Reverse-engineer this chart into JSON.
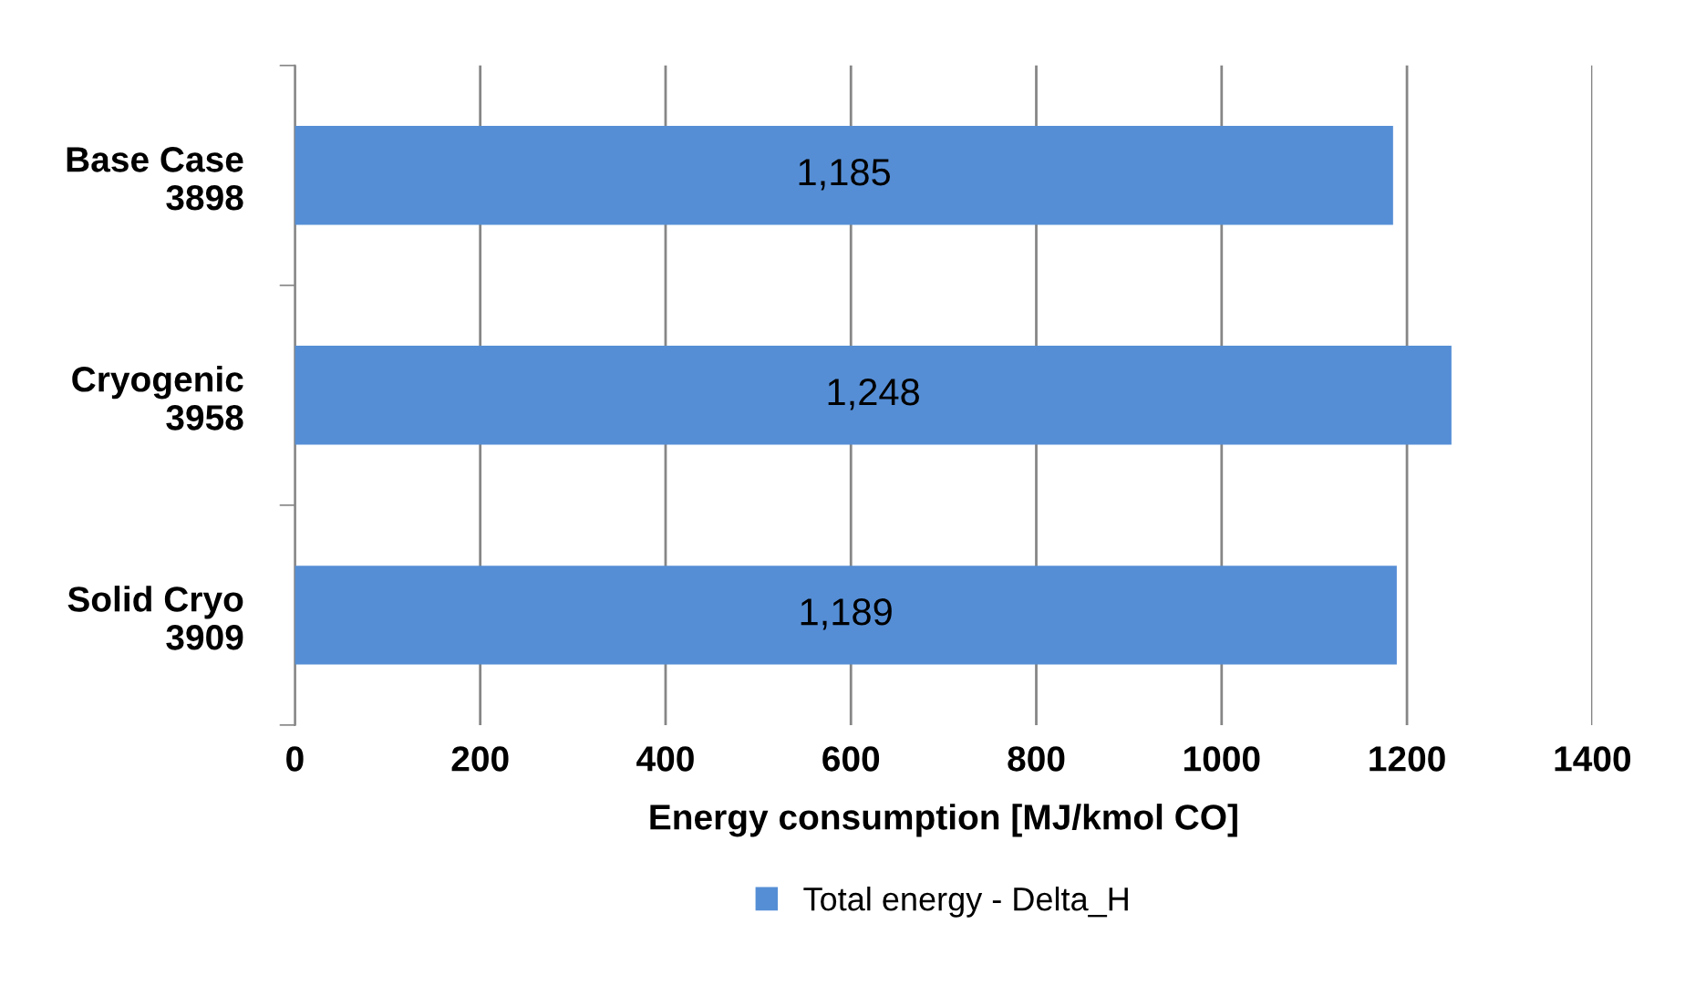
{
  "chart_data": {
    "type": "bar",
    "orientation": "horizontal",
    "categories": [
      "Base Case\n3898",
      "Cryogenic\n3958",
      "Solid Cryo\n3909"
    ],
    "series": [
      {
        "name": "Total energy - Delta_H",
        "color": "#558ed5",
        "values": [
          1185,
          1248,
          1189
        ],
        "value_labels": [
          "1,185",
          "1,248",
          "1,189"
        ]
      }
    ],
    "xlabel": "Energy consumption [MJ/kmol CO]",
    "xlim": [
      0,
      1400
    ],
    "xticks": [
      0,
      200,
      400,
      600,
      800,
      1000,
      1200,
      1400
    ],
    "grid": "x",
    "legend": "bottom"
  }
}
